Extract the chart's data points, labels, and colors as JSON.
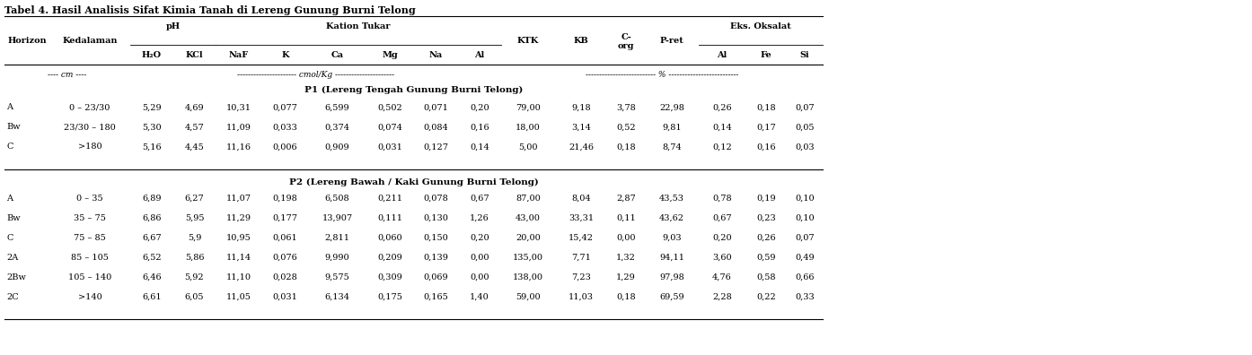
{
  "title": "Tabel 4. Hasil Analisis Sifat Kimia Tanah di Lereng Gunung Burni Telong",
  "section1_title": "P1 (Lereng Tengah Gunung Burni Telong)",
  "section2_title": "P2 (Lereng Bawah / Kaki Gunung Burni Telong)",
  "rows_p1": [
    [
      "A",
      "0 – 23/30",
      "5,29",
      "4,69",
      "10,31",
      "0,077",
      "6,599",
      "0,502",
      "0,071",
      "0,20",
      "79,00",
      "9,18",
      "3,78",
      "22,98",
      "0,26",
      "0,18",
      "0,07"
    ],
    [
      "Bw",
      "23/30 – 180",
      "5,30",
      "4,57",
      "11,09",
      "0,033",
      "0,374",
      "0,074",
      "0,084",
      "0,16",
      "18,00",
      "3,14",
      "0,52",
      "9,81",
      "0,14",
      "0,17",
      "0,05"
    ],
    [
      "C",
      ">180",
      "5,16",
      "4,45",
      "11,16",
      "0,006",
      "0,909",
      "0,031",
      "0,127",
      "0,14",
      "5,00",
      "21,46",
      "0,18",
      "8,74",
      "0,12",
      "0,16",
      "0,03"
    ]
  ],
  "rows_p2": [
    [
      "A",
      "0 – 35",
      "6,89",
      "6,27",
      "11,07",
      "0,198",
      "6,508",
      "0,211",
      "0,078",
      "0,67",
      "87,00",
      "8,04",
      "2,87",
      "43,53",
      "0,78",
      "0,19",
      "0,10"
    ],
    [
      "Bw",
      "35 – 75",
      "6,86",
      "5,95",
      "11,29",
      "0,177",
      "13,907",
      "0,111",
      "0,130",
      "1,26",
      "43,00",
      "33,31",
      "0,11",
      "43,62",
      "0,67",
      "0,23",
      "0,10"
    ],
    [
      "C",
      "75 – 85",
      "6,67",
      "5,9",
      "10,95",
      "0,061",
      "2,811",
      "0,060",
      "0,150",
      "0,20",
      "20,00",
      "15,42",
      "0,00",
      "9,03",
      "0,20",
      "0,26",
      "0,07"
    ],
    [
      "2A",
      "85 – 105",
      "6,52",
      "5,86",
      "11,14",
      "0,076",
      "9,990",
      "0,209",
      "0,139",
      "0,00",
      "135,00",
      "7,71",
      "1,32",
      "94,11",
      "3,60",
      "0,59",
      "0,49"
    ],
    [
      "2Bw",
      "105 – 140",
      "6,46",
      "5,92",
      "11,10",
      "0,028",
      "9,575",
      "0,309",
      "0,069",
      "0,00",
      "138,00",
      "7,23",
      "1,29",
      "97,98",
      "4,76",
      "0,58",
      "0,66"
    ],
    [
      "2C",
      ">140",
      "6,61",
      "6,05",
      "11,05",
      "0,031",
      "6,134",
      "0,175",
      "0,165",
      "1,40",
      "59,00",
      "11,03",
      "0,18",
      "69,59",
      "2,28",
      "0,22",
      "0,33"
    ]
  ],
  "font_size": 7.0,
  "title_font_size": 8.0,
  "figsize": [
    13.94,
    3.96
  ],
  "dpi": 100
}
